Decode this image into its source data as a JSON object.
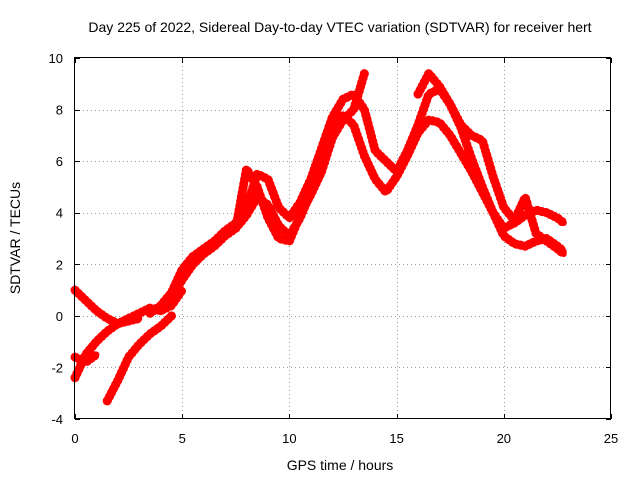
{
  "chart_data": {
    "type": "line",
    "title": "Day 225 of 2022, Sidereal Day-to-day VTEC variation (SDTVAR) for receiver hert",
    "xlabel": "GPS time / hours",
    "ylabel": "SDTVAR / TECUs",
    "xlim": [
      0,
      25
    ],
    "ylim": [
      -4,
      10
    ],
    "xticks": [
      0,
      5,
      10,
      15,
      20,
      25
    ],
    "yticks": [
      -4,
      -2,
      0,
      2,
      4,
      6,
      8,
      10
    ],
    "grid": true,
    "legend": "none",
    "series_color": "#ff0000",
    "series": [
      {
        "name": "track-1",
        "x": [
          0.0,
          0.5,
          1.0,
          1.5,
          2.0,
          2.5,
          3.0,
          3.5,
          4.0,
          4.5,
          5.0
        ],
        "y": [
          1.0,
          0.6,
          0.2,
          -0.1,
          -0.3,
          -0.1,
          0.1,
          0.3,
          0.2,
          0.4,
          1.0
        ]
      },
      {
        "name": "track-2",
        "x": [
          0.0,
          0.5,
          1.0,
          1.5,
          2.0,
          2.5,
          3.0
        ],
        "y": [
          -2.4,
          -1.5,
          -1.0,
          -0.6,
          -0.3,
          -0.2,
          -0.1
        ]
      },
      {
        "name": "track-3",
        "x": [
          0.0,
          0.5,
          1.0
        ],
        "y": [
          -1.6,
          -1.8,
          -1.5
        ]
      },
      {
        "name": "track-4",
        "x": [
          1.5,
          2.0,
          2.5,
          3.0,
          3.5,
          4.0,
          4.5
        ],
        "y": [
          -3.3,
          -2.5,
          -1.6,
          -1.1,
          -0.7,
          -0.4,
          0.0
        ]
      },
      {
        "name": "track-5",
        "x": [
          3.5,
          4.0,
          4.5,
          5.0,
          5.5,
          6.0,
          6.5,
          7.0,
          7.5,
          8.0,
          8.5,
          9.0,
          9.5,
          10.0,
          10.5,
          11.0,
          11.5,
          12.0,
          12.5,
          13.0,
          13.5,
          14.0,
          14.5,
          15.0,
          15.5,
          16.0,
          16.5,
          17.0,
          17.5,
          18.0,
          18.5,
          19.0,
          19.5,
          20.0,
          20.5,
          21.0,
          21.5,
          22.0,
          22.5,
          22.8
        ],
        "y": [
          0.1,
          0.4,
          0.9,
          1.8,
          2.3,
          2.6,
          2.9,
          3.3,
          3.6,
          4.2,
          5.5,
          5.3,
          4.2,
          3.8,
          4.4,
          5.3,
          6.5,
          7.7,
          8.4,
          8.6,
          8.0,
          6.4,
          6.0,
          5.6,
          6.4,
          7.4,
          8.6,
          8.8,
          8.2,
          7.3,
          6.1,
          5.0,
          4.0,
          3.4,
          3.6,
          3.9,
          4.1,
          4.0,
          3.8,
          3.6
        ]
      },
      {
        "name": "track-6",
        "x": [
          4.0,
          4.5,
          5.0,
          5.5,
          6.0,
          6.5,
          7.0,
          7.5,
          8.0,
          8.5,
          9.0,
          9.5,
          10.0,
          10.5,
          11.0,
          11.5,
          12.0,
          12.5,
          13.0,
          13.5,
          14.0,
          14.5,
          15.0,
          15.5,
          16.0,
          16.5,
          17.0,
          17.5,
          18.0,
          18.5,
          19.0,
          19.5,
          20.0,
          20.5,
          21.0,
          21.5,
          22.0,
          22.5,
          22.8
        ],
        "y": [
          0.2,
          0.7,
          1.4,
          2.0,
          2.4,
          2.7,
          3.1,
          3.4,
          3.9,
          4.6,
          4.3,
          3.5,
          3.1,
          3.8,
          4.8,
          5.9,
          7.1,
          7.8,
          7.4,
          6.2,
          5.3,
          4.8,
          5.4,
          6.2,
          7.1,
          7.6,
          7.5,
          7.0,
          6.3,
          5.6,
          4.8,
          4.0,
          3.1,
          2.8,
          2.7,
          2.9,
          3.0,
          2.7,
          2.5
        ]
      },
      {
        "name": "track-7",
        "x": [
          7.5,
          8.0,
          8.5,
          9.0,
          9.5,
          10.0,
          10.5,
          11.0,
          11.5,
          12.0,
          12.5,
          13.0,
          13.5
        ],
        "y": [
          3.4,
          5.7,
          5.0,
          3.8,
          3.0,
          2.9,
          3.9,
          4.7,
          5.6,
          6.9,
          7.6,
          8.0,
          9.4
        ]
      },
      {
        "name": "track-8",
        "x": [
          16.0,
          16.5,
          17.0,
          17.5,
          18.0,
          18.5,
          19.0,
          19.5,
          20.0,
          20.5,
          21.0,
          21.5,
          22.0,
          22.5,
          22.8
        ],
        "y": [
          8.6,
          9.4,
          8.9,
          8.2,
          7.4,
          7.0,
          6.8,
          5.4,
          4.2,
          3.7,
          4.6,
          3.2,
          2.9,
          2.6,
          2.4
        ]
      }
    ]
  }
}
